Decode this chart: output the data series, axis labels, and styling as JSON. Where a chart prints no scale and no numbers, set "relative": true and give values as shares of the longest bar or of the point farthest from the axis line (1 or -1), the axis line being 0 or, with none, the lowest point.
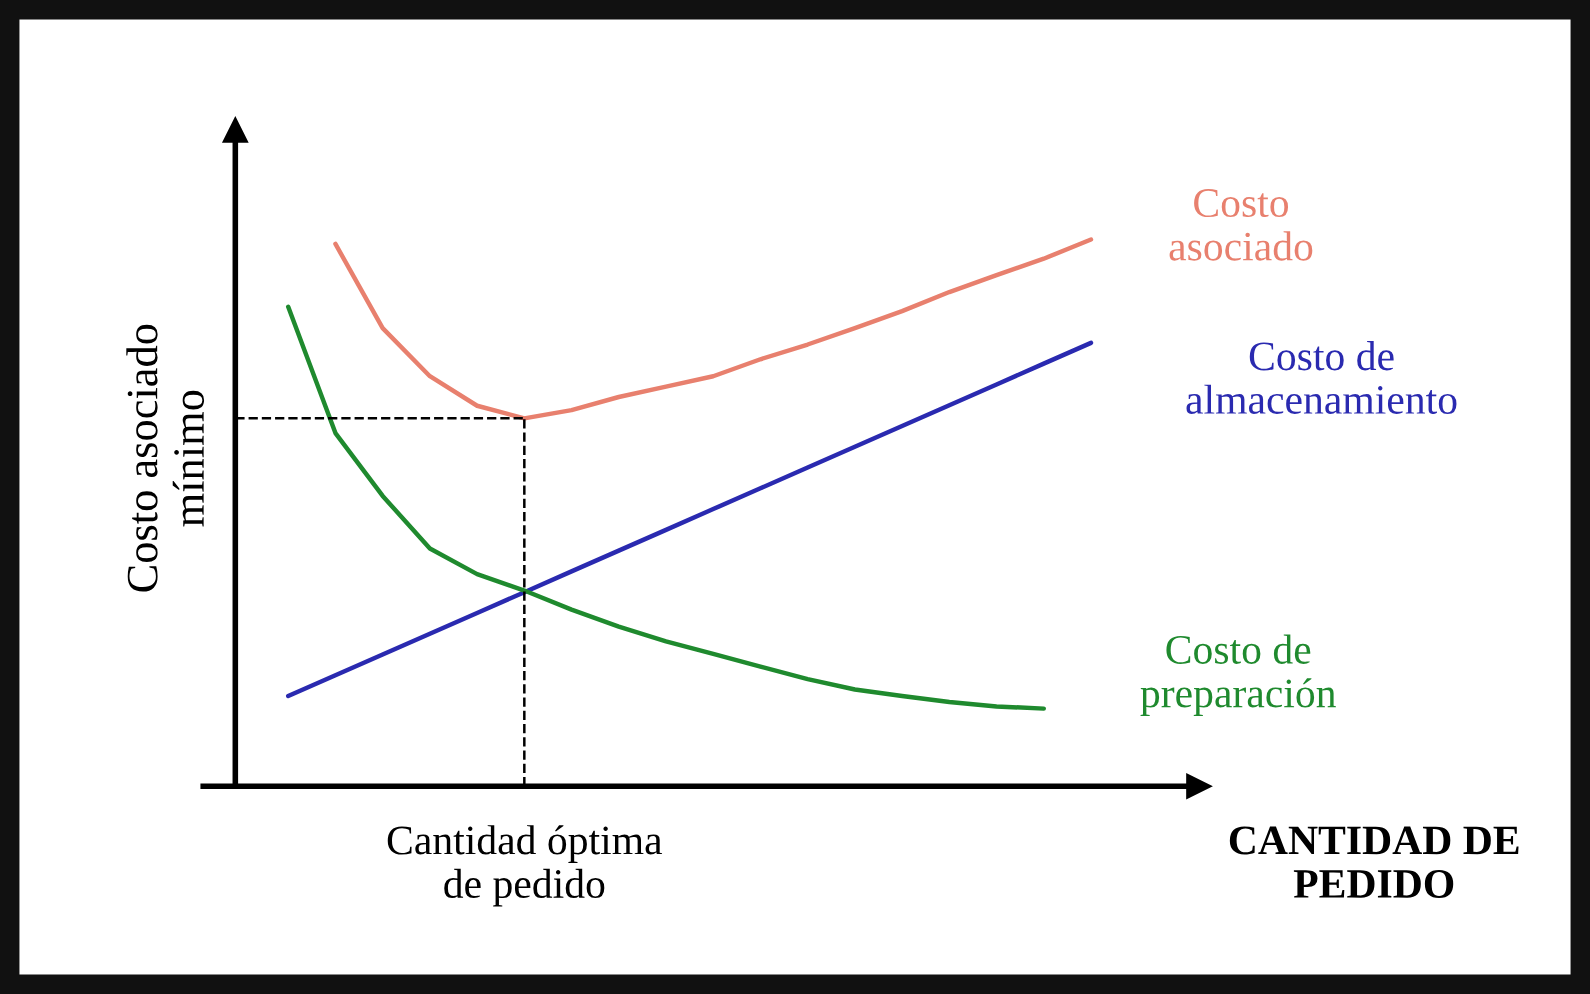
{
  "chart_data": {
    "type": "line",
    "relative": true,
    "xlabel": "CANTIDAD DE\nPEDIDO",
    "ylabel": "Costo asociado\nmínimo",
    "legend": false,
    "annotations": [
      "Cantidad óptima\nde pedido"
    ],
    "marker": "none",
    "line_style": "solid",
    "categories": [
      null,
      null,
      null,
      null,
      null,
      null,
      null,
      null,
      null,
      null,
      null,
      null,
      null,
      null,
      null,
      null,
      null,
      null,
      null,
      null
    ],
    "series": [
      {
        "name": "Costo\nasociado",
        "color": "#e8806e",
        "values": [
          null,
          null,
          0.992,
          0.838,
          0.75,
          0.696,
          0.673,
          0.688,
          0.712,
          0.731,
          0.75,
          0.781,
          0.808,
          0.838,
          0.869,
          0.904,
          0.935,
          0.965,
          1.0,
          null
        ]
      },
      {
        "name": "Costo de\nalmacenamiento",
        "color": "#2a2ab0",
        "values": [
          null,
          0.165,
          0.203,
          0.241,
          0.279,
          0.317,
          0.355,
          0.393,
          0.431,
          0.469,
          0.507,
          0.545,
          0.583,
          0.621,
          0.659,
          0.697,
          0.735,
          0.773,
          0.811,
          null
        ]
      },
      {
        "name": "Costo de\npreparación",
        "color": "#1f8a2e",
        "values": [
          null,
          0.877,
          0.646,
          0.531,
          0.435,
          0.388,
          0.358,
          0.323,
          0.292,
          0.265,
          0.242,
          0.219,
          0.196,
          0.177,
          0.165,
          0.154,
          0.146,
          0.142,
          null,
          null
        ]
      }
    ],
    "ref_lines": [
      {
        "axis": "y",
        "value": 0.673,
        "line_style": "dashed",
        "color": "#000000"
      }
    ]
  }
}
